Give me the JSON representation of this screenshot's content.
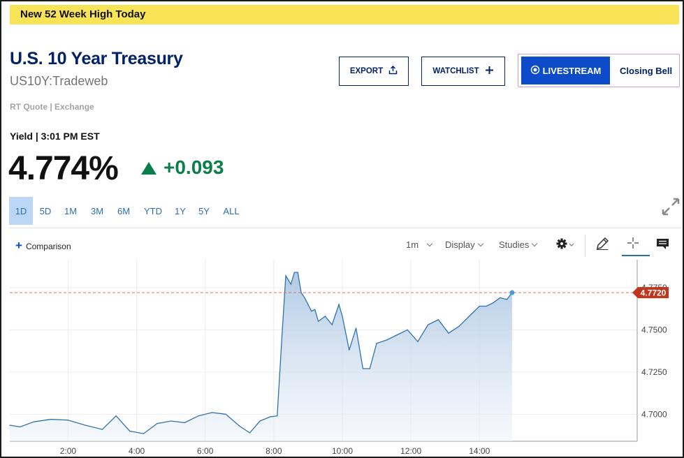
{
  "banner": {
    "text": "New 52 Week High Today"
  },
  "quote": {
    "title": "U.S. 10 Year Treasury",
    "symbol": "US10Y:Tradeweb",
    "rt_label": "RT Quote | Exchange",
    "yield_label": "Yield | 3:01 PM EST",
    "price": "4.774%",
    "change": "+0.093"
  },
  "buttons": {
    "export": "EXPORT",
    "watchlist": "WATCHLIST",
    "livestream": "LIVESTREAM",
    "closing_bell": "Closing Bell"
  },
  "ranges": [
    {
      "label": "1D",
      "active": true
    },
    {
      "label": "5D",
      "active": false
    },
    {
      "label": "1M",
      "active": false
    },
    {
      "label": "3M",
      "active": false
    },
    {
      "label": "6M",
      "active": false
    },
    {
      "label": "YTD",
      "active": false
    },
    {
      "label": "1Y",
      "active": false
    },
    {
      "label": "5Y",
      "active": false
    },
    {
      "label": "ALL",
      "active": false
    }
  ],
  "toolbar": {
    "comparison": "Comparison",
    "interval": "1m",
    "display": "Display",
    "studies": "Studies"
  },
  "icons": {
    "export": "share-upload-icon",
    "watchlist": "plus-icon",
    "live": "live-radio-icon",
    "expand": "expand-arrows-icon",
    "settings": "gear-icon",
    "draw": "pencil-icon",
    "crosshair": "crosshair-icon",
    "comment": "comment-icon"
  },
  "colors": {
    "banner": "#f9e356",
    "brand_navy": "#012169",
    "live_blue": "#0d4bc8",
    "up_green": "#0a7f4a",
    "line": "#2f72ae",
    "last_price_tag": "#c0361c"
  },
  "chart_data": {
    "type": "area",
    "x_ticks": [
      "2:00",
      "4:00",
      "6:00",
      "8:00",
      "10:00",
      "12:00",
      "14:00"
    ],
    "y_ticks": [
      "4.7000",
      "4.7250",
      "4.7500",
      "4.7750"
    ],
    "last_value_label": "4.7720",
    "last_value": 4.772,
    "xlim": [
      0.3,
      18.6
    ],
    "ylim": [
      4.684,
      4.7915
    ],
    "grid": true,
    "series": [
      {
        "x": [
          0.3,
          0.6,
          1.0,
          1.5,
          2.0,
          2.5,
          3.0,
          3.4,
          3.8,
          4.2,
          4.6,
          5.0,
          5.4,
          5.8,
          6.2,
          6.6,
          7.0,
          7.3,
          7.6,
          7.9,
          8.1,
          8.25,
          8.35,
          8.5,
          8.6,
          8.7,
          8.8,
          8.9,
          9.0,
          9.1,
          9.2,
          9.3,
          9.5,
          9.7,
          9.9,
          10.0,
          10.2,
          10.4,
          10.6,
          10.8,
          11.0,
          11.3,
          11.6,
          11.9,
          12.2,
          12.5,
          12.8,
          13.1,
          13.4,
          13.7,
          14.0,
          14.2,
          14.4,
          14.6,
          14.8,
          14.95
        ],
        "y": [
          4.6935,
          4.6925,
          4.6955,
          4.697,
          4.6965,
          4.6935,
          4.691,
          4.699,
          4.69,
          4.6885,
          4.6945,
          4.696,
          4.695,
          4.699,
          4.701,
          4.7,
          4.693,
          4.689,
          4.696,
          4.6985,
          4.699,
          4.75,
          4.782,
          4.777,
          4.784,
          4.784,
          4.772,
          4.769,
          4.765,
          4.761,
          4.762,
          4.755,
          4.758,
          4.753,
          4.765,
          4.758,
          4.738,
          4.751,
          4.727,
          4.727,
          4.742,
          4.744,
          4.747,
          4.75,
          4.743,
          4.753,
          4.756,
          4.748,
          4.752,
          4.758,
          4.764,
          4.764,
          4.766,
          4.769,
          4.768,
          4.772
        ]
      }
    ]
  }
}
